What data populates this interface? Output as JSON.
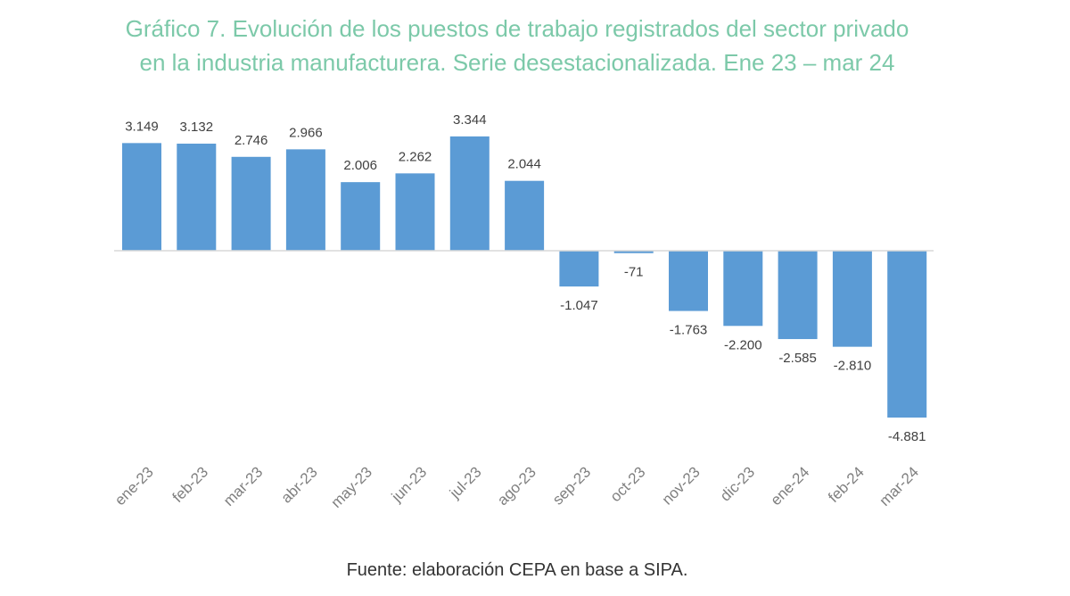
{
  "chart_data": {
    "type": "bar",
    "title_line1": "Gráfico 7. Evolución de los puestos de trabajo registrados del sector privado",
    "title_line2": "en la industria manufacturera. Serie desestacionalizada. Ene 23 – mar 24",
    "xlabel": "",
    "ylabel": "",
    "categories": [
      "ene-23",
      "feb-23",
      "mar-23",
      "abr-23",
      "may-23",
      "jun-23",
      "jul-23",
      "ago-23",
      "sep-23",
      "oct-23",
      "nov-23",
      "dic-23",
      "ene-24",
      "feb-24",
      "mar-24"
    ],
    "values": [
      3149,
      3132,
      2746,
      2966,
      2006,
      2262,
      3344,
      2044,
      -1047,
      -71,
      -1763,
      -2200,
      -2585,
      -2810,
      -4881
    ],
    "labels": [
      "3.149",
      "3.132",
      "2.746",
      "2.966",
      "2.006",
      "2.262",
      "3.344",
      "2.044",
      "-1.047",
      "-71",
      "-1.763",
      "-2.200",
      "-2.585",
      "-2.810",
      "-4.881"
    ],
    "grid": false,
    "legend": "none",
    "bar_color": "#5b9bd5",
    "source": "Fuente: elaboración CEPA en base a SIPA."
  }
}
